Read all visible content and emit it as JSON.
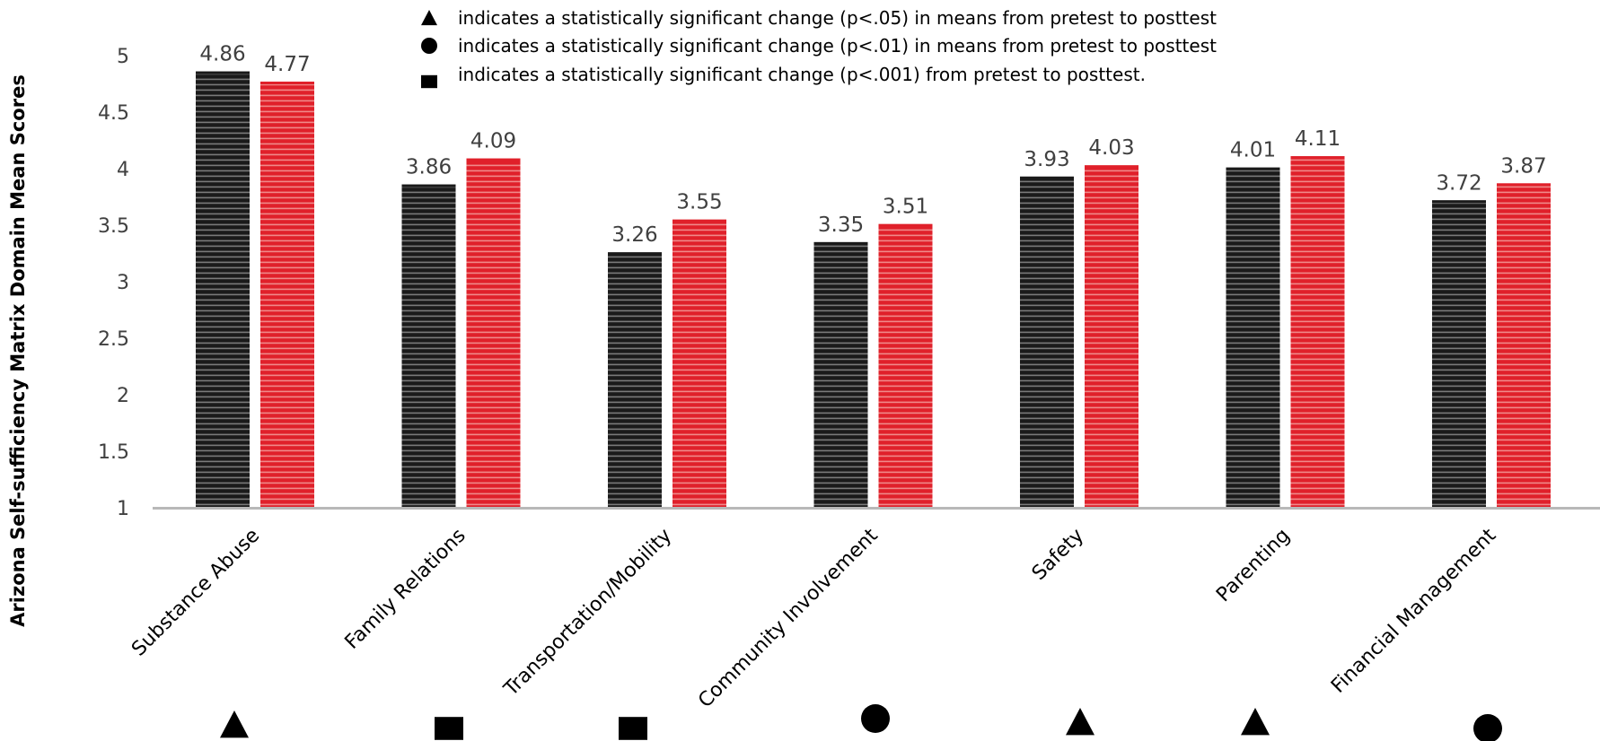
{
  "chart_data": {
    "type": "bar",
    "ylabel": "Arizona Self-sufficiency Matrix Domain Mean Scores",
    "xlabel": "",
    "ylim": [
      1,
      5
    ],
    "yticks": [
      "1",
      "1.5",
      "2",
      "2.5",
      "3",
      "3.5",
      "4",
      "4.5",
      "5"
    ],
    "categories": [
      "Substance Abuse",
      "Family Relations",
      "Transportation/Mobility",
      "Community Involvement",
      "Safety",
      "Parenting",
      "Financial Management"
    ],
    "series": [
      {
        "color": "#1a1a1a",
        "values": [
          4.86,
          3.86,
          3.26,
          3.35,
          3.93,
          4.01,
          3.72
        ],
        "labels": [
          "4.86",
          "3.86",
          "3.26",
          "3.35",
          "3.93",
          "4.01",
          "3.72"
        ]
      },
      {
        "color": "#e0202a",
        "values": [
          4.77,
          4.09,
          3.55,
          3.51,
          4.03,
          4.11,
          3.87
        ],
        "labels": [
          "4.77",
          "4.09",
          "3.55",
          "3.51",
          "4.03",
          "4.11",
          "3.87"
        ]
      }
    ],
    "significance_markers": [
      "triangle",
      "square",
      "square",
      "circle",
      "triangle",
      "triangle",
      "circle"
    ],
    "legend": [
      {
        "symbol": "triangle",
        "text": "indicates a statistically significant change (p<.05) in means from pretest to posttest"
      },
      {
        "symbol": "circle",
        "text": "indicates a statistically significant change (p<.01) in means from pretest to posttest"
      },
      {
        "symbol": "square",
        "text": "indicates a statistically significant change (p<.001) from pretest to posttest."
      }
    ],
    "legend_position": "top-center",
    "grid": false
  }
}
